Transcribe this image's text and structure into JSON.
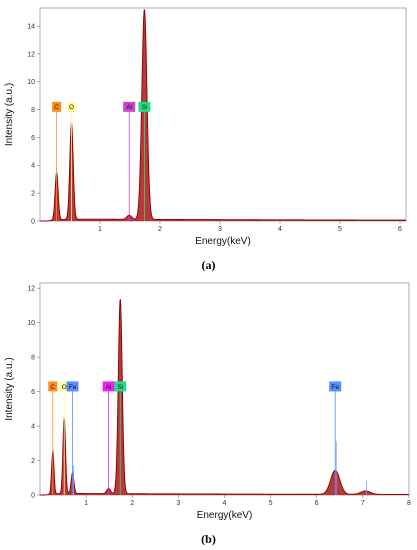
{
  "chart_data": [
    {
      "type": "line",
      "panel": "(a)",
      "xlabel": "Energy(keV)",
      "ylabel": "Intensity (a.u.)",
      "xlim": [
        0,
        6.1
      ],
      "ylim": [
        0,
        15.3
      ],
      "x_ticks": [
        1,
        2,
        3,
        4,
        5,
        6
      ],
      "y_ticks": [
        0,
        2,
        4,
        6,
        8,
        10,
        12,
        14
      ],
      "grid": false,
      "spectrum_color": "#8b0000",
      "fill_color": "#b22222",
      "peaks": [
        {
          "element": "C",
          "energy": 0.277,
          "intensity": 3.4
        },
        {
          "element": "O",
          "energy": 0.525,
          "intensity": 6.9
        },
        {
          "element": "Al",
          "energy": 1.487,
          "intensity": 0.3
        },
        {
          "element": "Si",
          "energy": 1.74,
          "intensity": 15.1
        }
      ],
      "background_level": 0.15,
      "labels": [
        {
          "text": "C",
          "energy": 0.277,
          "color": "#ff8c1a"
        },
        {
          "text": "O",
          "energy": 0.525,
          "color": "#ffff99"
        },
        {
          "text": "Al",
          "energy": 1.487,
          "color": "#cc44cc"
        },
        {
          "text": "Si",
          "energy": 1.74,
          "color": "#22dd88"
        }
      ],
      "label_level": 8.2,
      "caption": "(a)"
    },
    {
      "type": "line",
      "panel": "(b)",
      "xlabel": "Energy(keV)",
      "ylabel": "Intensity (a.u.)",
      "xlim": [
        0,
        8
      ],
      "ylim": [
        0,
        12.3
      ],
      "x_ticks": [
        1,
        2,
        3,
        4,
        5,
        6,
        7,
        8
      ],
      "y_ticks": [
        0,
        2,
        4,
        6,
        8,
        10,
        12
      ],
      "grid": false,
      "spectrum_color": "#8b0000",
      "fill_color": "#b22222",
      "peaks": [
        {
          "element": "C",
          "energy": 0.277,
          "intensity": 2.5
        },
        {
          "element": "O",
          "energy": 0.525,
          "intensity": 4.4
        },
        {
          "element": "Fe",
          "energy": 0.705,
          "intensity": 1.2
        },
        {
          "element": "Al",
          "energy": 1.487,
          "intensity": 0.3
        },
        {
          "element": "Si",
          "energy": 1.74,
          "intensity": 11.3
        },
        {
          "element": "Fe",
          "energy": 6.4,
          "intensity": 1.4
        },
        {
          "element": "Fe",
          "energy": 7.06,
          "intensity": 0.2
        }
      ],
      "reference_lines": [
        {
          "energy": 0.705,
          "intensity": 1.7
        },
        {
          "energy": 6.4,
          "intensity": 3.1
        },
        {
          "energy": 7.06,
          "intensity": 0.8
        }
      ],
      "background_level": 0.1,
      "labels": [
        {
          "text": "C",
          "energy": 0.277,
          "color": "#ff8c1a"
        },
        {
          "text": "O",
          "energy": 0.525,
          "color": "#ffff99"
        },
        {
          "text": "Fe",
          "energy": 0.705,
          "color": "#5a8cff"
        },
        {
          "text": "Al",
          "energy": 1.487,
          "color": "#ee22ee"
        },
        {
          "text": "Si",
          "energy": 1.74,
          "color": "#22dd88"
        },
        {
          "text": "Fe",
          "energy": 6.4,
          "color": "#5a8cff"
        }
      ],
      "label_level": 6.3,
      "caption": "(b)"
    }
  ],
  "captions": {
    "a": "(a)",
    "b": "(b)"
  }
}
